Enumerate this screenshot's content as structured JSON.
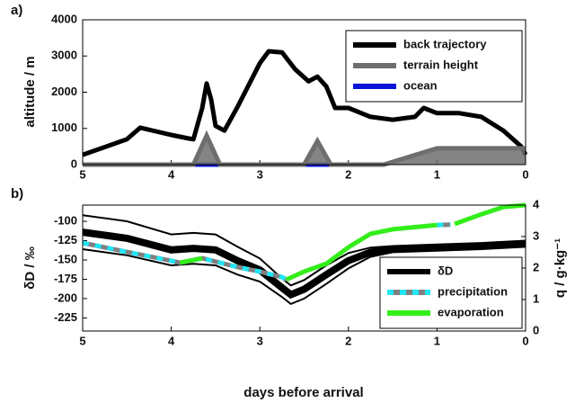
{
  "chart_data": [
    {
      "type": "line",
      "panel_label": "a)",
      "ylabel": "altitude / m",
      "xlim": [
        5,
        0
      ],
      "xticks": [
        5,
        4,
        3,
        2,
        1,
        0
      ],
      "ylim": [
        0,
        4000
      ],
      "yticks": [
        0,
        1000,
        2000,
        3000,
        4000
      ],
      "legend": "upper right",
      "series": [
        {
          "name": "back trajectory",
          "color": "#000000",
          "kind": "line",
          "x": [
            5,
            4.5,
            4.35,
            4.0,
            3.8,
            3.75,
            3.65,
            3.6,
            3.55,
            3.5,
            3.4,
            3.25,
            3.0,
            2.9,
            2.75,
            2.6,
            2.45,
            2.35,
            2.25,
            2.15,
            2.0,
            1.75,
            1.5,
            1.25,
            1.15,
            1.0,
            0.75,
            0.5,
            0.25,
            0.05,
            0
          ],
          "values": [
            270,
            700,
            1020,
            820,
            720,
            700,
            1565,
            2240,
            1800,
            1070,
            940,
            1600,
            2800,
            3130,
            3100,
            2630,
            2300,
            2430,
            2160,
            1565,
            1565,
            1320,
            1240,
            1320,
            1565,
            1420,
            1420,
            1320,
            940,
            500,
            270
          ]
        },
        {
          "name": "terrain height",
          "color": "#6e6e6e",
          "kind": "area",
          "x": [
            5,
            3.75,
            3.6,
            3.45,
            2.5,
            2.35,
            2.2,
            1.6,
            1.2,
            1.0,
            0.5,
            0
          ],
          "values": [
            0,
            0,
            800,
            0,
            0,
            650,
            0,
            0,
            300,
            450,
            450,
            450
          ]
        },
        {
          "name": "ocean",
          "color": "#0a14d8",
          "kind": "line",
          "x": [
            5,
            1.6
          ],
          "values": [
            0,
            0
          ]
        }
      ]
    },
    {
      "type": "line",
      "panel_label": "b)",
      "ylabel": "δD / ‰",
      "y2label": "q / g·kg⁻¹",
      "xlabel": "days before arrival",
      "xlim": [
        5,
        0
      ],
      "xticks": [
        5,
        4,
        3,
        2,
        1,
        0
      ],
      "ylim": [
        -242,
        -79
      ],
      "yticks": [
        -225,
        -200,
        -175,
        -150,
        -125,
        -100
      ],
      "y2lim": [
        0,
        4
      ],
      "y2ticks": [
        0,
        1,
        2,
        3,
        4
      ],
      "legend": "lower right",
      "series": [
        {
          "name": "δD",
          "color": "#000000",
          "kind": "band",
          "x": [
            5,
            4.5,
            4,
            3.75,
            3.5,
            3.25,
            3,
            2.75,
            2.65,
            2.5,
            2.25,
            2,
            1.75,
            1.5,
            1,
            0.5,
            0
          ],
          "values": [
            -114,
            -122,
            -137,
            -135,
            -137,
            -151,
            -163,
            -186,
            -195,
            -188,
            -169,
            -151,
            -140,
            -136,
            -134,
            -132,
            -129
          ],
          "lower": [
            -136,
            -144,
            -157,
            -155,
            -157,
            -169,
            -178,
            -198,
            -207,
            -200,
            -181,
            -161,
            -146,
            -140,
            -138,
            -136,
            -133
          ],
          "upper": [
            -92,
            -100,
            -117,
            -115,
            -117,
            -133,
            -148,
            -174,
            -183,
            -176,
            -157,
            -141,
            -134,
            -132,
            -130,
            -128,
            -125
          ]
        },
        {
          "name": "precipitation",
          "color": "#22e5f5",
          "under_color": "#808080",
          "kind": "dashed",
          "axis": "y2",
          "x": [
            5,
            4.5,
            4,
            3.9,
            3.65,
            3.25,
            3,
            2.75,
            2.7,
            2.5,
            2.25,
            2,
            1.75,
            1.5,
            1.0,
            0.85,
            0.8,
            0.5,
            0.25,
            0
          ],
          "values": [
            2.8,
            2.51,
            2.23,
            2.17,
            2.31,
            2.03,
            1.89,
            1.71,
            1.63,
            null,
            null,
            null,
            null,
            null,
            3.37,
            3.38,
            null,
            null,
            null,
            null
          ]
        },
        {
          "name": "evaporation",
          "color": "#33ee1a",
          "kind": "line",
          "axis": "y2",
          "x": [
            5,
            4.5,
            4,
            3.9,
            3.65,
            3.25,
            3,
            2.75,
            2.7,
            2.5,
            2.25,
            2,
            1.75,
            1.5,
            1.0,
            0.85,
            0.8,
            0.5,
            0.25,
            0
          ],
          "values": [
            null,
            null,
            null,
            2.17,
            2.31,
            null,
            null,
            null,
            1.63,
            1.89,
            2.14,
            2.66,
            3.09,
            3.23,
            3.37,
            null,
            3.4,
            3.71,
            3.94,
            4.0
          ]
        }
      ]
    }
  ]
}
